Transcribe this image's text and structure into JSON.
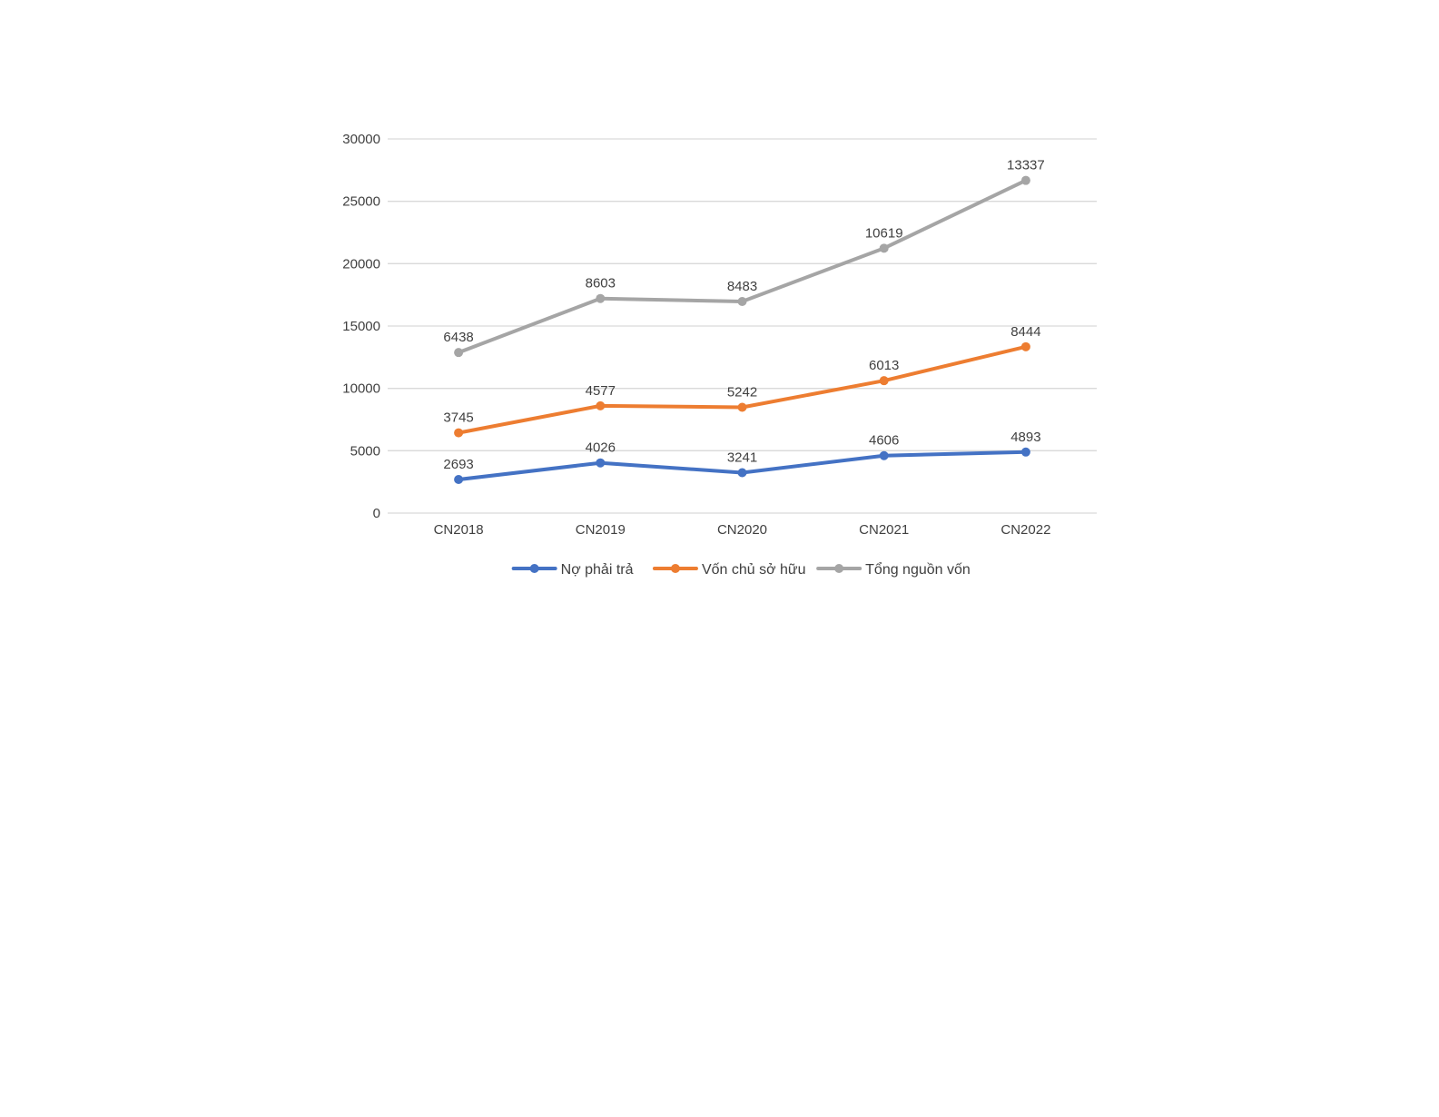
{
  "chart_data": {
    "type": "line",
    "title": "",
    "xlabel": "",
    "ylabel": "",
    "categories": [
      "CN2018",
      "CN2019",
      "CN2020",
      "CN2021",
      "CN2022"
    ],
    "ylim": [
      0,
      30000
    ],
    "yticks": [
      0,
      5000,
      10000,
      15000,
      20000,
      25000,
      30000
    ],
    "grid": true,
    "legend_position": "bottom",
    "series": [
      {
        "name": "Nợ phải trả",
        "color": "#4472C4",
        "values": [
          2693,
          4026,
          3241,
          4606,
          4893
        ],
        "plot_values": [
          2693,
          4026,
          3241,
          4606,
          4893
        ],
        "labels": [
          "2693",
          "4026",
          "3241",
          "4606",
          "4893"
        ]
      },
      {
        "name": "Vốn chủ sở hữu",
        "color": "#ED7D31",
        "values": [
          3745,
          4577,
          5242,
          6013,
          8444
        ],
        "plot_values": [
          6438,
          8603,
          8483,
          10619,
          13337
        ],
        "labels": [
          "3745",
          "4577",
          "5242",
          "6013",
          "8444"
        ]
      },
      {
        "name": "Tổng nguồn vốn",
        "color": "#A5A5A5",
        "values": [
          6438,
          8603,
          8483,
          10619,
          13337
        ],
        "plot_values": [
          12876,
          17206,
          16966,
          21238,
          26674
        ],
        "labels": [
          "6438",
          "8603",
          "8483",
          "10619",
          "13337"
        ]
      }
    ]
  }
}
